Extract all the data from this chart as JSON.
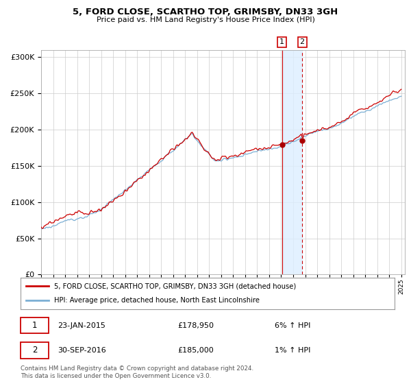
{
  "title": "5, FORD CLOSE, SCARTHO TOP, GRIMSBY, DN33 3GH",
  "subtitle": "Price paid vs. HM Land Registry's House Price Index (HPI)",
  "legend_line1": "5, FORD CLOSE, SCARTHO TOP, GRIMSBY, DN33 3GH (detached house)",
  "legend_line2": "HPI: Average price, detached house, North East Lincolnshire",
  "transaction1_date": "23-JAN-2015",
  "transaction1_price": 178950,
  "transaction1_hpi": "6% ↑ HPI",
  "transaction2_date": "30-SEP-2016",
  "transaction2_price": 185000,
  "transaction2_hpi": "1% ↑ HPI",
  "footer": "Contains HM Land Registry data © Crown copyright and database right 2024.\nThis data is licensed under the Open Government Licence v3.0.",
  "hpi_color": "#7bafd4",
  "price_color": "#cc0000",
  "marker_color": "#aa0000",
  "background_color": "#ffffff",
  "grid_color": "#cccccc",
  "ylim_min": 0,
  "ylim_max": 310000,
  "transaction1_year": 2015.06,
  "transaction2_year": 2016.75,
  "span_color": "#ddeeff"
}
